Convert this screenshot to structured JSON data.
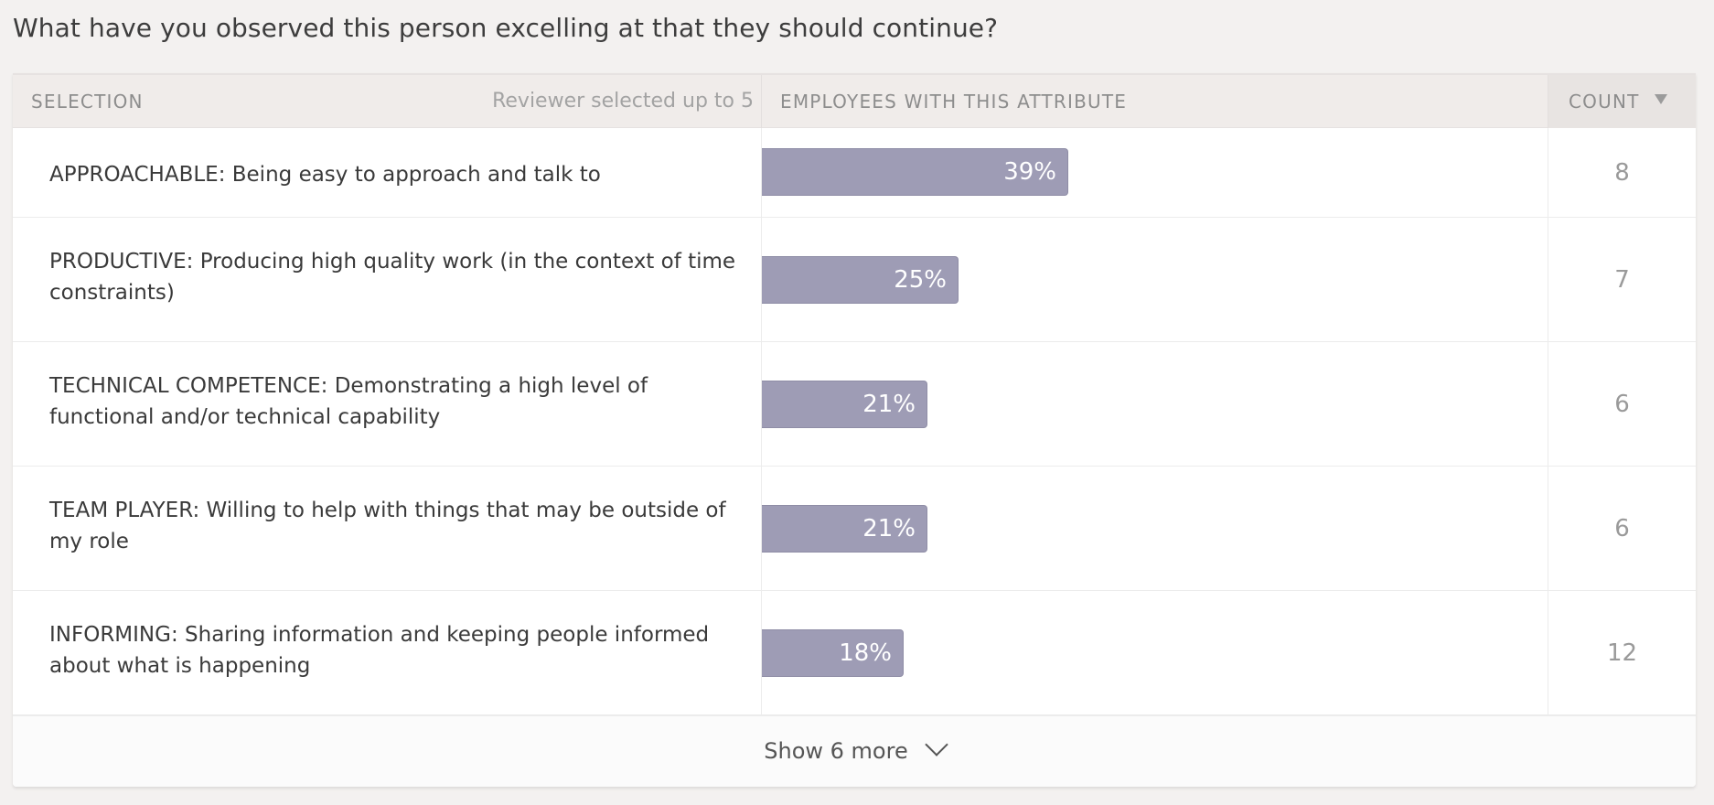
{
  "question": "What have you observed this person excelling at that they should continue?",
  "table": {
    "headers": {
      "selection": "SELECTION",
      "reviewer_note": "Reviewer selected up to 5",
      "employees": "EMPLOYEES WITH THIS ATTRIBUTE",
      "count": "COUNT"
    },
    "sort_icon": "triangle-down-icon",
    "rows": [
      {
        "label": "APPROACHABLE: Being easy to approach and talk to",
        "percent": 39,
        "percent_label": "39%",
        "count": "8"
      },
      {
        "label": "PRODUCTIVE: Producing high quality work (in the context of time constraints)",
        "percent": 25,
        "percent_label": "25%",
        "count": "7"
      },
      {
        "label": "TECHNICAL COMPETENCE: Demonstrating a high level of functional and/or technical capability",
        "percent": 21,
        "percent_label": "21%",
        "count": "6"
      },
      {
        "label": "TEAM PLAYER: Willing to help with things that may be outside of my role",
        "percent": 21,
        "percent_label": "21%",
        "count": "6"
      },
      {
        "label": "INFORMING: Sharing information and keeping people informed about what is happening",
        "percent": 18,
        "percent_label": "18%",
        "count": "12"
      }
    ],
    "show_more_label": "Show 6 more",
    "show_more_icon": "chevron-down-icon"
  },
  "colors": {
    "bar": "#9e9cb5",
    "header_bg": "#f0ecea",
    "page_bg": "#f3f1f0"
  }
}
